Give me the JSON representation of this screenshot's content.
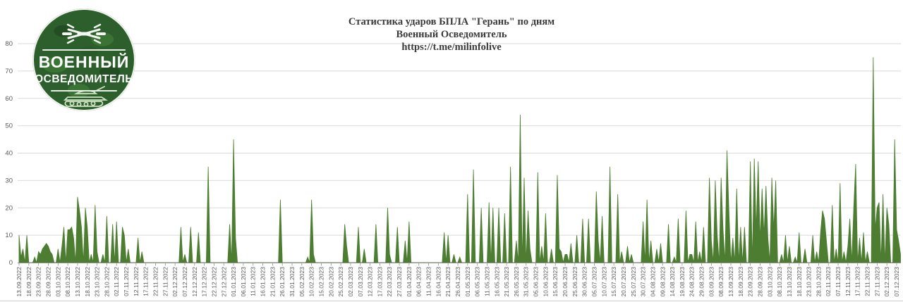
{
  "title": {
    "line1": "Статистика ударов БПЛА \"Герань\" по дням",
    "line2": "Военный Осведомитель",
    "line3": "https://t.me/milinfolive"
  },
  "logo": {
    "word1": "ВОЕННЫЙ",
    "word2": "ОСВЕДОМИТЕЛЬ"
  },
  "colors": {
    "area": "#4d7d31",
    "grid": "#d9d9d9",
    "axis_line": "#8f8f8f",
    "axis_text": "#595959",
    "title_text": "#3a3a3a",
    "logo_bg": "#2d5f2c"
  },
  "chart_data": {
    "type": "area",
    "title": "Статистика ударов БПЛА \"Герань\" по дням",
    "xlabel": "",
    "ylabel": "",
    "ylim": [
      0,
      80
    ],
    "yticks": [
      0,
      10,
      20,
      30,
      40,
      50,
      60,
      70,
      80
    ],
    "grid": true,
    "legend": "none",
    "start_date": "2022-09-13",
    "end_date": "2023-12-09",
    "x_tick_step_days": 5,
    "x_tick_labels": [
      "13.09.2022",
      "18.09.2022",
      "23.09.2022",
      "28.09.2022",
      "03.10.2022",
      "08.10.2022",
      "13.10.2022",
      "18.10.2022",
      "23.10.2022",
      "28.10.2022",
      "02.11.2022",
      "07.11.2022",
      "12.11.2022",
      "17.11.2022",
      "22.11.2022",
      "27.11.2022",
      "02.12.2022",
      "07.12.2022",
      "12.12.2022",
      "17.12.2022",
      "22.12.2022",
      "27.12.2022",
      "01.01.2023",
      "06.01.2023",
      "11.01.2023",
      "16.01.2023",
      "21.01.2023",
      "26.01.2023",
      "31.01.2023",
      "05.02.2023",
      "10.02.2023",
      "15.02.2023",
      "20.02.2023",
      "25.02.2023",
      "02.03.2023",
      "07.03.2023",
      "12.03.2023",
      "17.03.2023",
      "22.03.2023",
      "27.03.2023",
      "01.04.2023",
      "06.04.2023",
      "11.04.2023",
      "16.04.2023",
      "21.04.2023",
      "26.04.2023",
      "01.05.2023",
      "06.05.2023",
      "11.05.2023",
      "16.05.2023",
      "21.05.2023",
      "26.05.2023",
      "31.05.2023",
      "05.06.2023",
      "10.06.2023",
      "15.06.2023",
      "20.06.2023",
      "25.06.2023",
      "30.06.2023",
      "05.07.2023",
      "10.07.2023",
      "15.07.2023",
      "20.07.2023",
      "25.07.2023",
      "30.07.2023",
      "04.08.2023",
      "09.08.2023",
      "14.08.2023",
      "19.08.2023",
      "24.08.2023",
      "29.08.2023",
      "03.09.2023",
      "08.09.2023",
      "13.09.2023",
      "18.09.2023",
      "23.09.2023",
      "28.09.2023",
      "03.10.2023",
      "08.10.2023",
      "13.10.2023",
      "18.10.2023",
      "23.10.2023",
      "28.10.2023",
      "02.11.2023",
      "07.11.2023",
      "12.11.2023",
      "17.11.2023",
      "22.11.2023",
      "27.11.2023",
      "02.12.2023",
      "07.12.2023"
    ],
    "default_value": 0,
    "values_by_date": {
      "2022-09-13": 10,
      "2022-09-14": 2,
      "2022-09-15": 5,
      "2022-09-17": 10,
      "2022-09-21": 2,
      "2022-09-23": 4,
      "2022-09-24": 3,
      "2022-09-25": 5,
      "2022-09-26": 6,
      "2022-09-27": 7,
      "2022-09-28": 6,
      "2022-09-29": 4,
      "2022-09-30": 3,
      "2022-10-03": 5,
      "2022-10-05": 6,
      "2022-10-06": 13,
      "2022-10-08": 12,
      "2022-10-09": 12,
      "2022-10-10": 13,
      "2022-10-11": 9,
      "2022-10-13": 24,
      "2022-10-14": 19,
      "2022-10-15": 13,
      "2022-10-17": 20,
      "2022-10-18": 13,
      "2022-10-20": 3,
      "2022-10-22": 21,
      "2022-10-23": 4,
      "2022-10-26": 3,
      "2022-10-28": 17,
      "2022-10-31": 14,
      "2022-11-02": 15,
      "2022-11-05": 13,
      "2022-11-06": 10,
      "2022-11-08": 5,
      "2022-11-13": 9,
      "2022-11-15": 4,
      "2022-12-05": 13,
      "2022-12-07": 3,
      "2022-12-10": 13,
      "2022-12-14": 11,
      "2022-12-19": 35,
      "2022-12-30": 14,
      "2023-01-01": 45,
      "2023-01-02": 9,
      "2023-01-25": 23,
      "2023-02-08": 2,
      "2023-02-10": 23,
      "2023-02-11": 3,
      "2023-02-27": 14,
      "2023-02-28": 6,
      "2023-03-06": 13,
      "2023-03-09": 5,
      "2023-03-15": 14,
      "2023-03-21": 20,
      "2023-03-22": 3,
      "2023-03-26": 13,
      "2023-03-30": 8,
      "2023-04-01": 15,
      "2023-04-19": 11,
      "2023-04-21": 10,
      "2023-04-24": 3,
      "2023-04-27": 2,
      "2023-05-01": 25,
      "2023-05-04": 34,
      "2023-05-08": 20,
      "2023-05-12": 22,
      "2023-05-14": 20,
      "2023-05-17": 20,
      "2023-05-20": 18,
      "2023-05-23": 35,
      "2023-05-26": 8,
      "2023-05-28": 54,
      "2023-05-30": 31,
      "2023-06-01": 19,
      "2023-06-02": 5,
      "2023-06-06": 33,
      "2023-06-08": 6,
      "2023-06-10": 18,
      "2023-06-13": 5,
      "2023-06-16": 32,
      "2023-06-17": 5,
      "2023-06-18": 4,
      "2023-06-20": 3,
      "2023-06-21": 3,
      "2023-06-23": 7,
      "2023-06-26": 10,
      "2023-06-29": 16,
      "2023-07-02": 16,
      "2023-07-06": 26,
      "2023-07-07": 8,
      "2023-07-09": 17,
      "2023-07-13": 35,
      "2023-07-17": 25,
      "2023-07-19": 4,
      "2023-07-22": 6,
      "2023-07-24": 3,
      "2023-07-30": 15,
      "2023-08-01": 23,
      "2023-08-03": 8,
      "2023-08-06": 5,
      "2023-08-08": 7,
      "2023-08-12": 14,
      "2023-08-15": 2,
      "2023-08-17": 16,
      "2023-08-21": 19,
      "2023-08-23": 3,
      "2023-08-24": 3,
      "2023-08-26": 15,
      "2023-08-28": 4,
      "2023-08-30": 13,
      "2023-09-02": 31,
      "2023-09-03": 8,
      "2023-09-05": 30,
      "2023-09-06": 10,
      "2023-09-08": 31,
      "2023-09-09": 12,
      "2023-09-11": 41,
      "2023-09-12": 19,
      "2023-09-14": 9,
      "2023-09-16": 27,
      "2023-09-18": 13,
      "2023-09-20": 13,
      "2023-09-23": 37,
      "2023-09-25": 38,
      "2023-09-26": 12,
      "2023-09-27": 37,
      "2023-09-28": 8,
      "2023-09-29": 27,
      "2023-09-30": 10,
      "2023-10-01": 28,
      "2023-10-02": 9,
      "2023-10-04": 31,
      "2023-10-05": 12,
      "2023-10-06": 30,
      "2023-10-09": 3,
      "2023-10-11": 10,
      "2023-10-13": 6,
      "2023-10-16": 2,
      "2023-10-18": 11,
      "2023-10-21": 5,
      "2023-10-25": 10,
      "2023-10-27": 4,
      "2023-10-29": 11,
      "2023-10-30": 19,
      "2023-10-31": 16,
      "2023-11-01": 8,
      "2023-11-04": 21,
      "2023-11-06": 5,
      "2023-11-08": 29,
      "2023-11-10": 4,
      "2023-11-12": 6,
      "2023-11-13": 16,
      "2023-11-15": 20,
      "2023-11-16": 36,
      "2023-11-18": 9,
      "2023-11-20": 11,
      "2023-11-22": 4,
      "2023-11-25": 75,
      "2023-11-26": 12,
      "2023-11-27": 20,
      "2023-11-28": 22,
      "2023-11-30": 25,
      "2023-12-02": 20,
      "2023-12-03": 14,
      "2023-12-06": 45,
      "2023-12-07": 12,
      "2023-12-08": 8,
      "2023-12-09": 3
    }
  }
}
